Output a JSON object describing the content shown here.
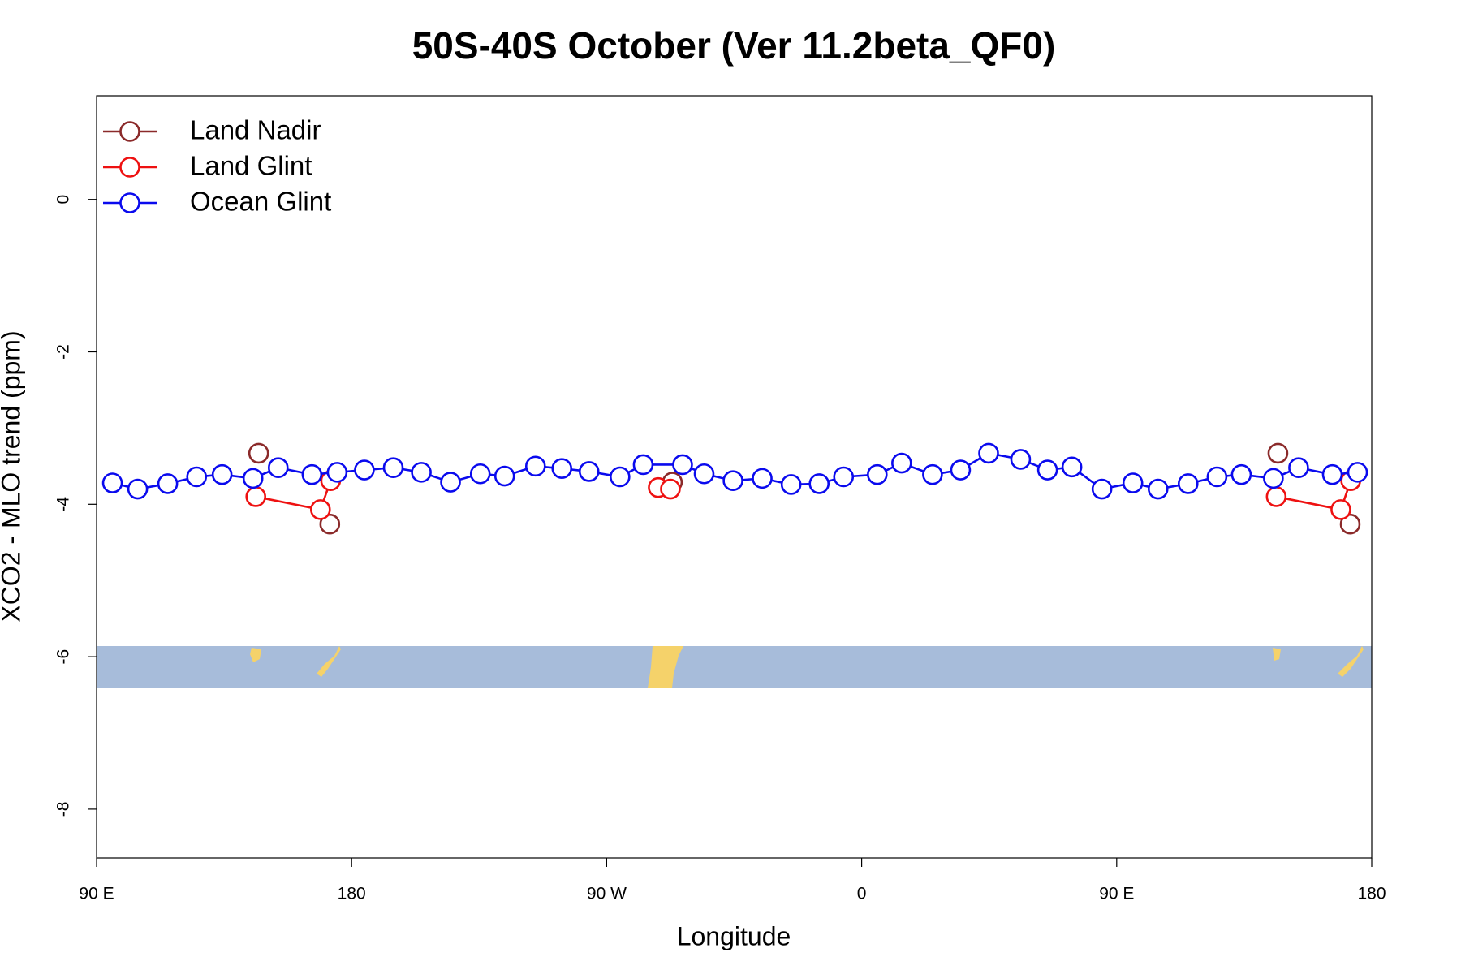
{
  "chart_data": {
    "type": "line",
    "title": "50S-40S October (Ver 11.2beta_QF0)",
    "x_label": "Longitude",
    "y_label": "XCO2 - MLO trend (ppm)",
    "xlim": [
      90,
      540
    ],
    "xticks": [
      {
        "value": 90,
        "label": "90 E"
      },
      {
        "value": 180,
        "label": "180"
      },
      {
        "value": 270,
        "label": "90 W"
      },
      {
        "value": 360,
        "label": "0"
      },
      {
        "value": 450,
        "label": "90 E"
      },
      {
        "value": 540,
        "label": "180"
      }
    ],
    "ylim": [
      -8.64,
      1.36
    ],
    "yticks": [
      0,
      -2,
      -4,
      -6,
      -8
    ],
    "grid": false,
    "legend": "top-left",
    "series": [
      {
        "name": "Land Nadir",
        "color": "#8b2a2a",
        "x": [
          147.2,
          null,
          172.3,
          null,
          293.2,
          null,
          506.9,
          null,
          532.4
        ],
        "values": [
          -3.33,
          null,
          -4.26,
          null,
          -3.71,
          null,
          -3.33,
          null,
          -4.26
        ]
      },
      {
        "name": "Land Glint",
        "color": "#ee1111",
        "x": [
          146.2,
          169.0,
          172.6,
          null,
          288.2,
          292.5,
          null,
          506.3,
          529.1,
          532.6
        ],
        "values": [
          -3.9,
          -4.07,
          -3.69,
          null,
          -3.78,
          -3.8,
          null,
          -3.9,
          -4.07,
          -3.69
        ]
      },
      {
        "name": "Ocean Glint",
        "color": "#0a0aee",
        "x": [
          95.6,
          104.5,
          115.1,
          125.3,
          134.3,
          145.2,
          154.1,
          166.0,
          174.9,
          184.5,
          194.7,
          204.6,
          214.9,
          225.4,
          234.0,
          244.9,
          254.2,
          263.8,
          274.7,
          282.9,
          296.8,
          304.4,
          314.6,
          324.9,
          335.1,
          345.0,
          353.6,
          365.5,
          374.1,
          385.0,
          394.9,
          404.8,
          416.1,
          425.6,
          434.2,
          444.8,
          455.7,
          464.6,
          475.2,
          485.4,
          494.0,
          505.3,
          514.2,
          526.1,
          535.0
        ],
        "values": [
          -3.72,
          -3.8,
          -3.73,
          -3.64,
          -3.61,
          -3.66,
          -3.52,
          -3.61,
          -3.58,
          -3.55,
          -3.52,
          -3.58,
          -3.71,
          -3.6,
          -3.63,
          -3.5,
          -3.53,
          -3.57,
          -3.64,
          -3.48,
          -3.48,
          -3.6,
          -3.69,
          -3.66,
          -3.74,
          -3.73,
          -3.64,
          -3.61,
          -3.46,
          -3.61,
          -3.55,
          -3.33,
          -3.41,
          -3.55,
          -3.51,
          -3.8,
          -3.72,
          -3.8,
          -3.73,
          -3.64,
          -3.61,
          -3.66,
          -3.52,
          -3.61,
          -3.58
        ]
      }
    ]
  }
}
